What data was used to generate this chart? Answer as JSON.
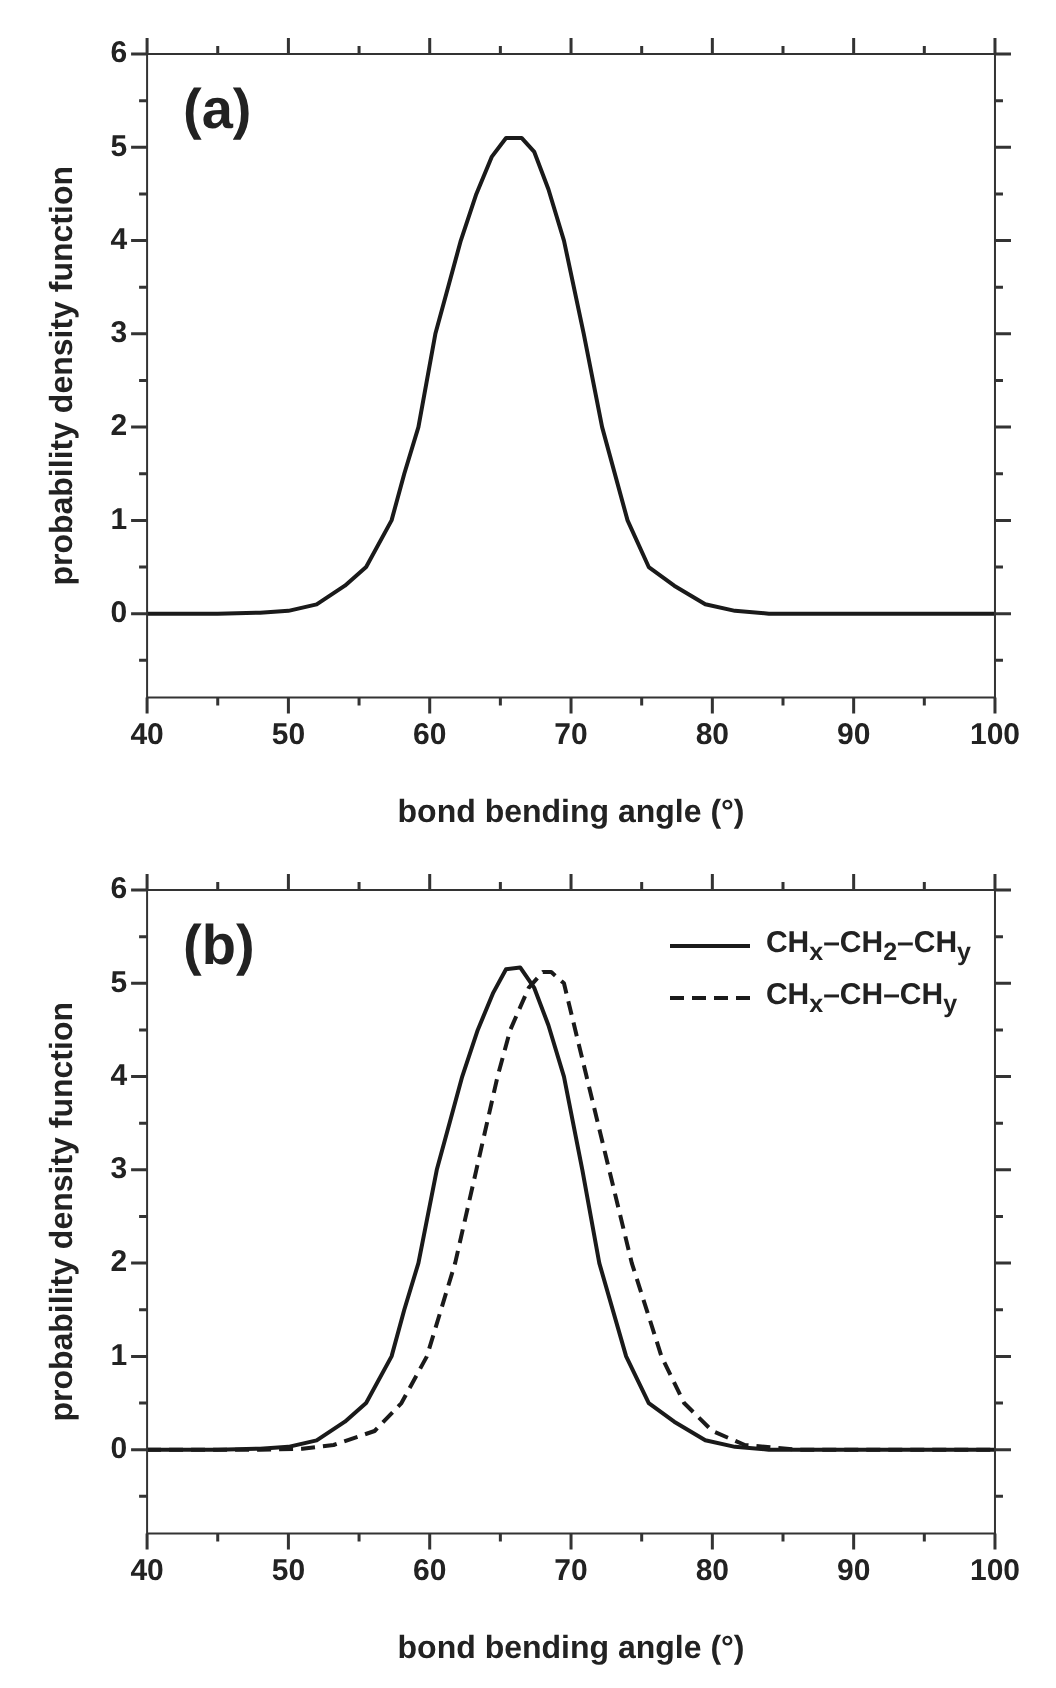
{
  "chart_data": [
    {
      "type": "line",
      "title": "(a)",
      "xlabel": "bond bending angle (°)",
      "ylabel": "probability density function",
      "xlim": [
        40,
        100
      ],
      "xticks": [
        40,
        {
          "value": 45,
          "label": null
        },
        50,
        {
          "value": 55,
          "label": null
        },
        60,
        {
          "value": 65,
          "label": null
        },
        70,
        {
          "value": 75,
          "label": null
        },
        80,
        {
          "value": 85,
          "label": null
        },
        90,
        {
          "value": 95,
          "label": null
        },
        100
      ],
      "ylim": [
        -0.9,
        6
      ],
      "yticks": [
        {
          "value": -0.5,
          "label": null
        },
        0,
        {
          "value": 0.5,
          "label": null
        },
        1,
        {
          "value": 1.5,
          "label": null
        },
        2,
        {
          "value": 2.5,
          "label": null
        },
        3,
        {
          "value": 3.5,
          "label": null
        },
        4,
        {
          "value": 4.5,
          "label": null
        },
        5,
        {
          "value": 5.5,
          "label": null
        },
        6
      ],
      "grid": false,
      "marker": "none",
      "series": [
        {
          "color": "#1a1a1a",
          "line_style": "solid",
          "x": [
            40,
            45,
            48,
            50,
            52,
            54,
            55.5,
            57.3,
            58.2,
            59.2,
            60.4,
            61.3,
            62.2,
            63.3,
            64.4,
            65.4,
            66.5,
            67.4,
            68.4,
            69.5,
            70.9,
            72.2,
            74,
            75.5,
            77.3,
            79.5,
            81.6,
            84,
            90,
            100
          ],
          "values": [
            0,
            0,
            0.01,
            0.03,
            0.1,
            0.3,
            0.5,
            1,
            1.5,
            2,
            3,
            3.5,
            4,
            4.5,
            4.9,
            5.1,
            5.1,
            4.95,
            4.55,
            4,
            3,
            2,
            1,
            0.5,
            0.3,
            0.1,
            0.03,
            0,
            0,
            0
          ]
        }
      ]
    },
    {
      "type": "line",
      "title": "(b)",
      "xlabel": "bond bending angle (°)",
      "ylabel": "probability density function",
      "xlim": [
        40,
        100
      ],
      "xticks": [
        40,
        {
          "value": 45,
          "label": null
        },
        50,
        {
          "value": 55,
          "label": null
        },
        60,
        {
          "value": 65,
          "label": null
        },
        70,
        {
          "value": 75,
          "label": null
        },
        80,
        {
          "value": 85,
          "label": null
        },
        90,
        {
          "value": 95,
          "label": null
        },
        100
      ],
      "ylim": [
        -0.9,
        6
      ],
      "yticks": [
        {
          "value": -0.5,
          "label": null
        },
        0,
        {
          "value": 0.5,
          "label": null
        },
        1,
        {
          "value": 1.5,
          "label": null
        },
        2,
        {
          "value": 2.5,
          "label": null
        },
        3,
        {
          "value": 3.5,
          "label": null
        },
        4,
        {
          "value": 4.5,
          "label": null
        },
        5,
        {
          "value": 5.5,
          "label": null
        },
        6
      ],
      "grid": false,
      "marker": "none",
      "legend": "top right",
      "series": [
        {
          "name": "CH$_{x}$–CH$_{2}$–CH$_{y}$",
          "color": "#1a1a1a",
          "line_style": "solid",
          "x": [
            40,
            45,
            48,
            50,
            52,
            54,
            55.5,
            57.3,
            58.2,
            59.2,
            60.5,
            61.4,
            62.3,
            63.4,
            64.5,
            65.4,
            66.4,
            67.4,
            68.4,
            69.5,
            70.8,
            72,
            73.9,
            75.5,
            77.3,
            79.5,
            81.6,
            84,
            90,
            100
          ],
          "values": [
            0,
            0,
            0.01,
            0.03,
            0.1,
            0.3,
            0.5,
            1,
            1.5,
            2,
            3,
            3.5,
            4,
            4.5,
            4.9,
            5.15,
            5.17,
            4.95,
            4.55,
            4,
            3,
            2,
            1,
            0.5,
            0.3,
            0.1,
            0.03,
            0,
            0,
            0
          ]
        },
        {
          "name": "CH$_{x}$–CH–CH$_{y}$",
          "color": "#1a1a1a",
          "line_style": "dashed",
          "x": [
            40,
            48,
            51,
            53.2,
            56.1,
            58,
            59.8,
            61.8,
            63.3,
            64.8,
            65.7,
            67,
            68,
            68.6,
            69.5,
            71.1,
            72.7,
            74.3,
            76.4,
            78,
            80,
            82.3,
            86,
            90,
            100
          ],
          "values": [
            0,
            0,
            0.01,
            0.05,
            0.2,
            0.5,
            1,
            2,
            3,
            4,
            4.5,
            4.95,
            5.12,
            5.12,
            5,
            4,
            3,
            2,
            1,
            0.5,
            0.2,
            0.05,
            0,
            0,
            0
          ]
        }
      ]
    }
  ]
}
